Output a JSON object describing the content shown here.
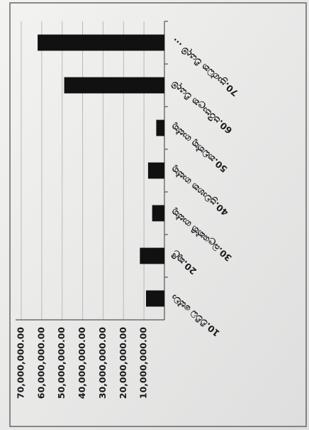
{
  "chart_data": {
    "type": "bar",
    "categories": [
      "10.විවිධ සේවා",
      "20.කුලී",
      "30.බලශක්ති ගාස්තු",
      "40.ප්‍රවාහන ගාස්තු",
      "50.නඩත්තු ගාස්තු",
      "60.පරිපාලන වියදම්",
      "70.ප්‍රාග්ධන වියදම් ..."
    ],
    "values": [
      9000000,
      12000000,
      6000000,
      8000000,
      4000000,
      49000000,
      62000000
    ],
    "color": "#111111",
    "ylim": [
      0,
      70000000
    ],
    "yticks": [
      {
        "value": 10000000,
        "label": "10,000,000.00"
      },
      {
        "value": 20000000,
        "label": "20,000,000.00"
      },
      {
        "value": 30000000,
        "label": "30,000,000.00"
      },
      {
        "value": 40000000,
        "label": "40,000,000.00"
      },
      {
        "value": 50000000,
        "label": "50,000,000.00"
      },
      {
        "value": 60000000,
        "label": "60,000,000.00"
      },
      {
        "value": 70000000,
        "label": "70,000,000.00"
      }
    ],
    "grid": true
  }
}
